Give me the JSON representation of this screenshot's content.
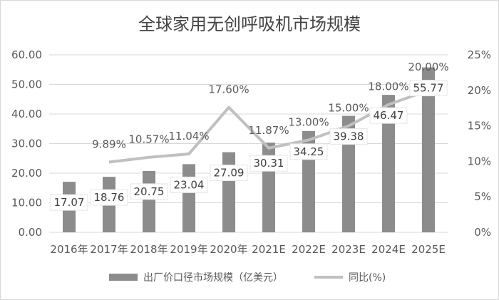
{
  "chart_data": {
    "type": "bar+line",
    "title": "全球家用无创呼吸机市场规模",
    "categories": [
      "2016年",
      "2017年",
      "2018年",
      "2019年",
      "2020年",
      "2021E",
      "2022E",
      "2023E",
      "2024E",
      "2025E"
    ],
    "series": [
      {
        "name": "出厂价口径市场规模（亿美元）",
        "type": "bar",
        "axis": "left",
        "color": "#8c8c8c",
        "values": [
          17.07,
          18.76,
          20.75,
          23.04,
          27.09,
          30.31,
          34.25,
          39.38,
          46.47,
          55.77
        ],
        "labels": [
          "17.07",
          "18.76",
          "20.75",
          "23.04",
          "27.09",
          "30.31",
          "34.25",
          "39.38",
          "46.47",
          "55.77"
        ]
      },
      {
        "name": "同比(%)",
        "type": "line",
        "axis": "right",
        "color": "#c0c0c0",
        "values": [
          null,
          9.89,
          10.57,
          11.04,
          17.6,
          11.87,
          13.0,
          15.0,
          18.0,
          20.0
        ],
        "labels": [
          "",
          "9.89%",
          "10.57%",
          "11.04%",
          "17.60%",
          "11.87%",
          "13.00%",
          "15.00%",
          "18.00%",
          "20.00%"
        ]
      }
    ],
    "y_left": {
      "min": 0,
      "max": 60,
      "step": 10,
      "tick_labels": [
        "0.00",
        "10.00",
        "20.00",
        "30.00",
        "40.00",
        "50.00",
        "60.00"
      ]
    },
    "y_right": {
      "min": 0,
      "max": 25,
      "step": 5,
      "tick_labels": [
        "0%",
        "5%",
        "10%",
        "15%",
        "20%",
        "25%"
      ]
    },
    "grid": true,
    "legend": "bottom"
  }
}
